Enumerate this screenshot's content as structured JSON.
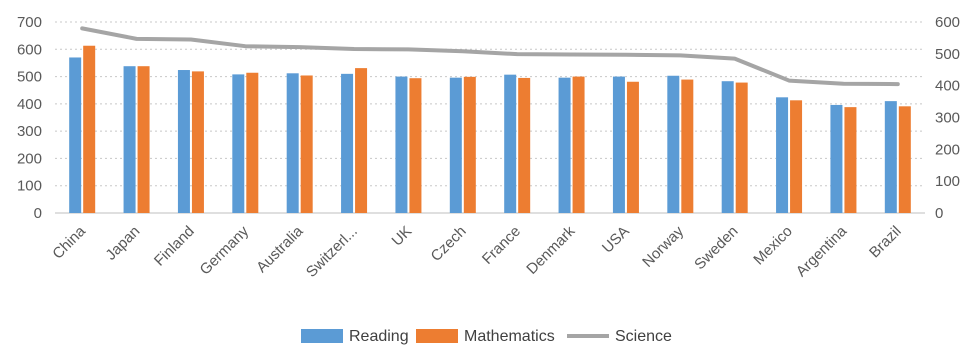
{
  "chart_data": {
    "type": "bar",
    "categories": [
      "China",
      "Japan",
      "Finland",
      "Germany",
      "Australia",
      "Switzerl...",
      "UK",
      "Czech",
      "France",
      "Denmark",
      "USA",
      "Norway",
      "Sweden",
      "Mexico",
      "Argentina",
      "Brazil"
    ],
    "series": [
      {
        "name": "Reading",
        "type": "bar",
        "axis": "left",
        "color": "#5B9BD5",
        "values": [
          570,
          538,
          524,
          508,
          512,
          510,
          500,
          496,
          507,
          496,
          500,
          503,
          483,
          424,
          396,
          410
        ]
      },
      {
        "name": "Mathematics",
        "type": "bar",
        "axis": "left",
        "color": "#ED7D31",
        "values": [
          613,
          538,
          519,
          514,
          504,
          531,
          494,
          499,
          495,
          500,
          481,
          489,
          478,
          413,
          388,
          391
        ]
      },
      {
        "name": "Science",
        "type": "line",
        "axis": "right",
        "color": "#A5A5A5",
        "values": [
          580,
          547,
          545,
          524,
          521,
          515,
          514,
          508,
          499,
          498,
          497,
          495,
          485,
          416,
          406,
          405
        ]
      }
    ],
    "y_left": {
      "min": 0,
      "max": 700,
      "ticks": [
        0,
        100,
        200,
        300,
        400,
        500,
        600,
        700
      ]
    },
    "y_right": {
      "min": 0,
      "max": 600,
      "ticks": [
        0,
        100,
        200,
        300,
        400,
        500,
        600
      ]
    },
    "grid": true,
    "legend_position": "bottom"
  }
}
